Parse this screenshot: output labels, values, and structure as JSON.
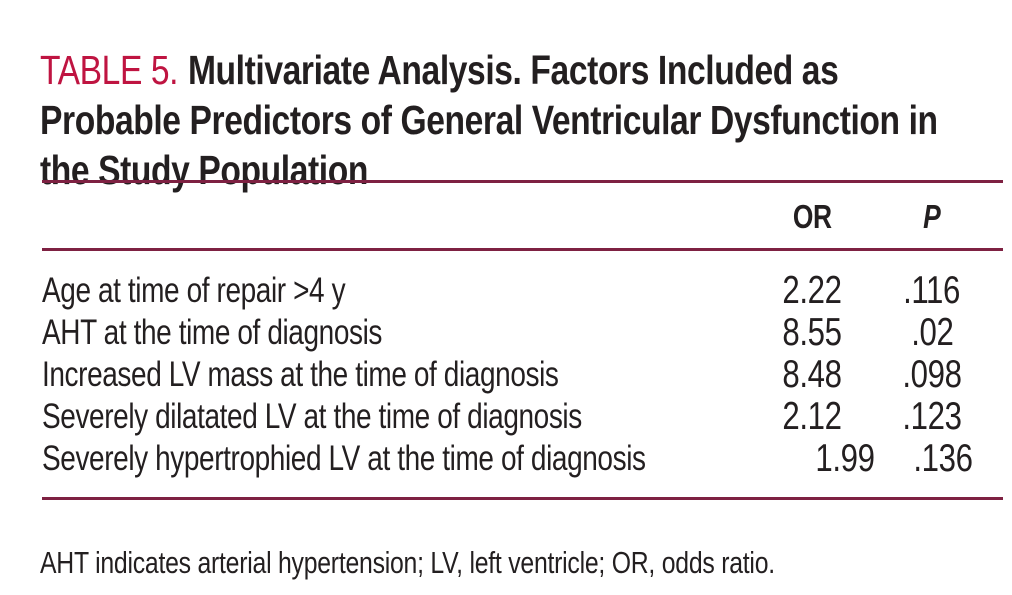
{
  "page": {
    "header": {
      "label": "TABLE 5.",
      "title": "Multivariate Analysis. Factors Included as Probable Predictors of General Ventricular Dysfunction in the Study Population"
    },
    "columns": {
      "or": "OR",
      "p": "P"
    },
    "rows": [
      {
        "factor": "Age at time of repair >4 y",
        "or": "2.22",
        "p": ".116"
      },
      {
        "factor": "AHT at the time of diagnosis",
        "or": "8.55",
        "p": ".02"
      },
      {
        "factor": "Increased LV mass at the time of diagnosis",
        "or": "8.48",
        "p": ".098"
      },
      {
        "factor": "Severely dilatated LV at the time of diagnosis",
        "or": "2.12",
        "p": ".123"
      },
      {
        "factor": "Severely hypertrophied LV at the time of diagnosis",
        "or": "1.99",
        "p": ".136"
      }
    ],
    "footnote": "AHT indicates arterial hypertension; LV, left ventricle; OR, odds ratio.",
    "colors": {
      "accent_red": "#bf1441",
      "rule_maroon": "#7e2142",
      "text": "#231f20",
      "background": "#ffffff"
    }
  }
}
